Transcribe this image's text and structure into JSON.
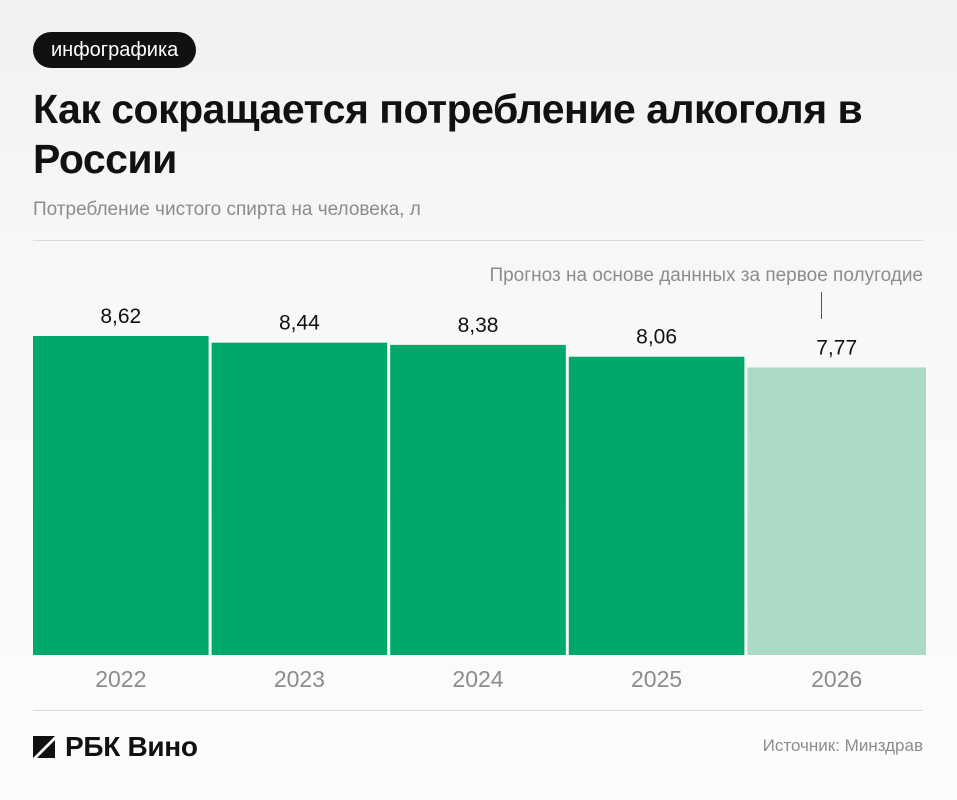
{
  "badge": "инфографика",
  "title": "Как сокращается потребление алкоголя в России",
  "subtitle": "Потребление чистого спирта на человека, л",
  "forecast_note": "Прогноз на основе даннных за первое полугодие",
  "brand": "РБК Вино",
  "source": "Источник: Минздрав",
  "colors": {
    "actual": "#00a86b",
    "forecast": "#acdbc5"
  },
  "chart_data": {
    "type": "bar",
    "categories": [
      "2022",
      "2023",
      "2024",
      "2025",
      "2026"
    ],
    "values": [
      8.62,
      8.44,
      8.38,
      8.06,
      7.77
    ],
    "value_labels": [
      "8,62",
      "8,44",
      "8,38",
      "8,06",
      "7,77"
    ],
    "forecast": [
      false,
      false,
      false,
      false,
      true
    ],
    "title": "Как сокращается потребление алкоголя в России",
    "ylabel": "Потребление чистого спирта на человека, л",
    "xlabel": "",
    "ylim": [
      0,
      8.62
    ],
    "grid": false,
    "legend": "none"
  }
}
